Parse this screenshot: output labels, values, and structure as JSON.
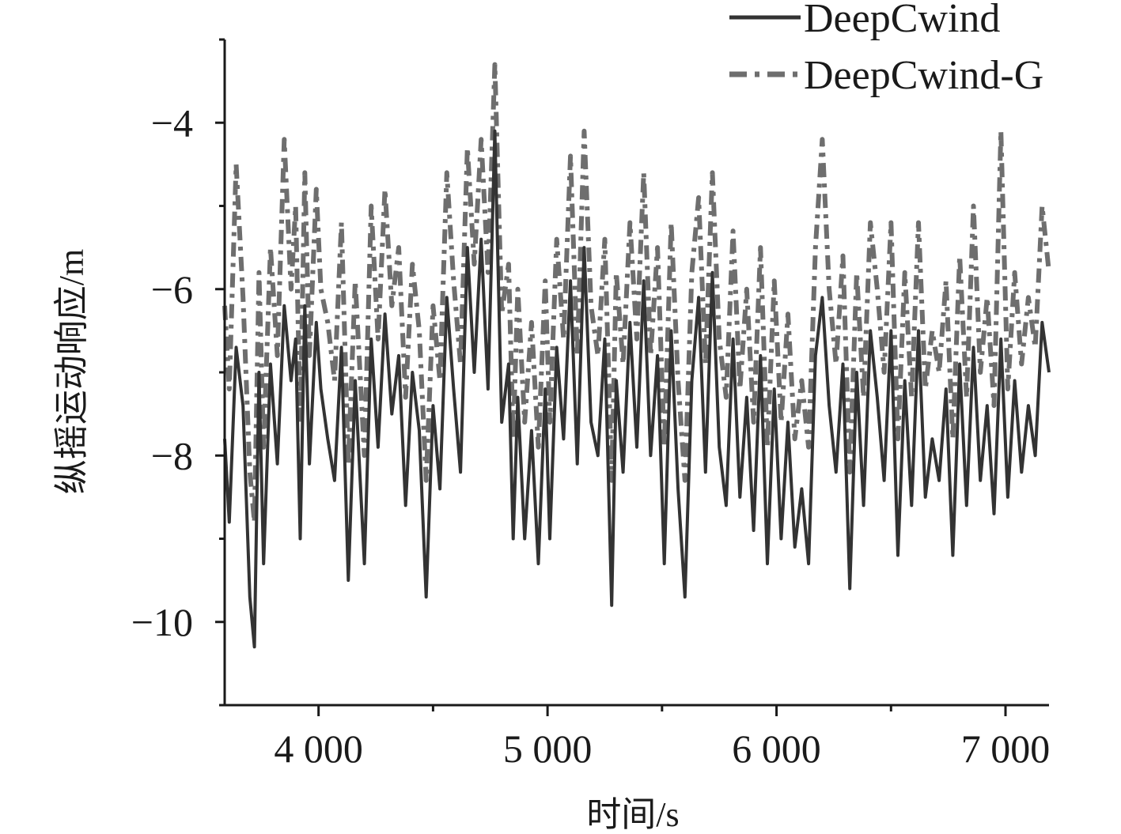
{
  "chart_data": {
    "type": "line",
    "xlabel": "时间/s",
    "ylabel": "纵摇运动响应/m",
    "xlim": [
      3590,
      7190
    ],
    "ylim": [
      -11,
      -3
    ],
    "xticks": [
      4000,
      5000,
      6000,
      7000
    ],
    "xtick_labels": [
      "4 000",
      "5 000",
      "6 000",
      "7 000"
    ],
    "yticks": [
      -10,
      -8,
      -6,
      -4
    ],
    "ytick_labels": [
      "−10",
      "−8",
      "−6",
      "−4"
    ],
    "legend_position": "top-right",
    "series": [
      {
        "name": "DeepCwind",
        "color": "#333333",
        "style": "solid",
        "x": [
          3590,
          3610,
          3640,
          3670,
          3700,
          3720,
          3740,
          3760,
          3790,
          3820,
          3850,
          3880,
          3900,
          3920,
          3940,
          3960,
          3990,
          4010,
          4040,
          4070,
          4100,
          4130,
          4160,
          4200,
          4230,
          4260,
          4290,
          4320,
          4350,
          4380,
          4410,
          4440,
          4470,
          4500,
          4530,
          4560,
          4590,
          4620,
          4650,
          4680,
          4710,
          4740,
          4770,
          4800,
          4830,
          4850,
          4870,
          4900,
          4930,
          4960,
          4990,
          5010,
          5040,
          5070,
          5100,
          5130,
          5160,
          5190,
          5220,
          5250,
          5280,
          5300,
          5330,
          5360,
          5390,
          5420,
          5450,
          5480,
          5510,
          5540,
          5570,
          5600,
          5630,
          5660,
          5690,
          5720,
          5750,
          5780,
          5810,
          5840,
          5870,
          5900,
          5930,
          5960,
          5990,
          6020,
          6050,
          6080,
          6110,
          6140,
          6170,
          6200,
          6230,
          6260,
          6290,
          6320,
          6350,
          6380,
          6410,
          6440,
          6470,
          6500,
          6530,
          6560,
          6590,
          6620,
          6650,
          6680,
          6710,
          6740,
          6770,
          6800,
          6830,
          6860,
          6890,
          6920,
          6950,
          6980,
          7010,
          7040,
          7070,
          7100,
          7130,
          7160,
          7190
        ],
        "values": [
          -7.8,
          -8.8,
          -6.7,
          -7.4,
          -9.7,
          -10.3,
          -7.0,
          -9.3,
          -6.9,
          -8.1,
          -6.2,
          -7.1,
          -6.6,
          -9.0,
          -6.2,
          -8.1,
          -6.4,
          -7.2,
          -7.8,
          -8.3,
          -6.7,
          -9.5,
          -7.1,
          -9.3,
          -6.6,
          -7.9,
          -6.3,
          -7.5,
          -6.8,
          -8.6,
          -7.0,
          -7.7,
          -9.7,
          -7.4,
          -8.4,
          -6.1,
          -7.2,
          -8.2,
          -5.5,
          -7.0,
          -5.4,
          -7.2,
          -4.1,
          -7.6,
          -6.9,
          -9.0,
          -7.3,
          -9.0,
          -7.7,
          -9.3,
          -7.2,
          -9.0,
          -6.7,
          -7.8,
          -5.9,
          -8.1,
          -5.5,
          -7.6,
          -8.0,
          -6.6,
          -9.8,
          -7.1,
          -8.2,
          -6.4,
          -7.9,
          -5.9,
          -8.0,
          -6.8,
          -9.3,
          -6.5,
          -8.4,
          -9.7,
          -7.1,
          -6.1,
          -8.2,
          -5.8,
          -7.9,
          -8.6,
          -6.6,
          -8.5,
          -7.3,
          -8.9,
          -6.8,
          -9.3,
          -7.2,
          -9.0,
          -7.6,
          -9.1,
          -8.4,
          -9.3,
          -6.8,
          -6.1,
          -7.4,
          -8.2,
          -6.9,
          -9.6,
          -7.0,
          -8.6,
          -6.5,
          -7.3,
          -8.3,
          -6.5,
          -9.2,
          -7.1,
          -8.6,
          -6.5,
          -8.5,
          -7.8,
          -8.3,
          -7.2,
          -9.2,
          -6.9,
          -8.6,
          -6.7,
          -8.3,
          -7.4,
          -8.7,
          -6.6,
          -8.5,
          -7.1,
          -8.2,
          -7.4,
          -8.0,
          -6.4,
          -7.0
        ],
        "note": ""
      },
      {
        "name": "DeepCwind-G",
        "color": "#6e6e6e",
        "style": "dash-dot",
        "x": [
          3590,
          3610,
          3640,
          3670,
          3700,
          3720,
          3740,
          3760,
          3790,
          3820,
          3850,
          3880,
          3900,
          3920,
          3940,
          3960,
          3990,
          4010,
          4040,
          4070,
          4100,
          4130,
          4160,
          4200,
          4230,
          4260,
          4290,
          4320,
          4350,
          4380,
          4410,
          4440,
          4470,
          4500,
          4530,
          4560,
          4590,
          4620,
          4650,
          4680,
          4710,
          4740,
          4770,
          4800,
          4830,
          4850,
          4870,
          4900,
          4930,
          4960,
          4990,
          5010,
          5040,
          5070,
          5100,
          5130,
          5160,
          5190,
          5220,
          5250,
          5280,
          5300,
          5330,
          5360,
          5390,
          5420,
          5450,
          5480,
          5510,
          5540,
          5570,
          5600,
          5630,
          5660,
          5690,
          5720,
          5750,
          5780,
          5810,
          5840,
          5870,
          5900,
          5930,
          5960,
          5990,
          6020,
          6050,
          6080,
          6110,
          6140,
          6170,
          6200,
          6230,
          6260,
          6290,
          6320,
          6350,
          6380,
          6410,
          6440,
          6470,
          6500,
          6530,
          6560,
          6590,
          6620,
          6650,
          6680,
          6710,
          6740,
          6770,
          6800,
          6830,
          6860,
          6890,
          6920,
          6950,
          6980,
          7010,
          7040,
          7070,
          7100,
          7130,
          7160,
          7190
        ],
        "values": [
          -6.2,
          -7.2,
          -4.5,
          -6.1,
          -8.2,
          -8.8,
          -5.8,
          -7.9,
          -5.5,
          -6.8,
          -4.2,
          -6.0,
          -5.0,
          -7.6,
          -4.6,
          -6.8,
          -4.8,
          -6.0,
          -6.4,
          -7.1,
          -5.2,
          -8.1,
          -5.9,
          -8.0,
          -5.0,
          -6.6,
          -4.8,
          -6.2,
          -5.5,
          -7.3,
          -5.7,
          -6.5,
          -8.3,
          -6.2,
          -7.1,
          -4.6,
          -5.9,
          -6.9,
          -4.3,
          -5.7,
          -4.2,
          -5.8,
          -3.3,
          -6.3,
          -5.7,
          -7.8,
          -6.0,
          -7.6,
          -6.4,
          -7.9,
          -5.9,
          -7.6,
          -5.4,
          -6.6,
          -4.4,
          -6.8,
          -4.1,
          -6.2,
          -6.8,
          -5.4,
          -8.3,
          -5.8,
          -6.9,
          -5.2,
          -6.6,
          -4.6,
          -6.8,
          -5.5,
          -7.9,
          -5.2,
          -7.1,
          -8.3,
          -5.8,
          -4.9,
          -6.9,
          -4.6,
          -6.6,
          -7.3,
          -5.3,
          -7.2,
          -6.0,
          -7.6,
          -5.5,
          -7.9,
          -5.9,
          -7.6,
          -6.3,
          -7.8,
          -7.1,
          -7.9,
          -5.5,
          -4.2,
          -6.0,
          -6.9,
          -5.6,
          -8.2,
          -5.8,
          -7.3,
          -5.2,
          -6.0,
          -7.0,
          -5.2,
          -7.8,
          -5.8,
          -7.3,
          -5.2,
          -7.2,
          -6.5,
          -7.0,
          -5.9,
          -7.8,
          -5.6,
          -7.3,
          -5.0,
          -7.0,
          -6.1,
          -7.4,
          -4.1,
          -7.2,
          -5.8,
          -6.9,
          -6.1,
          -6.7,
          -5.0,
          -5.8
        ]
      }
    ]
  }
}
